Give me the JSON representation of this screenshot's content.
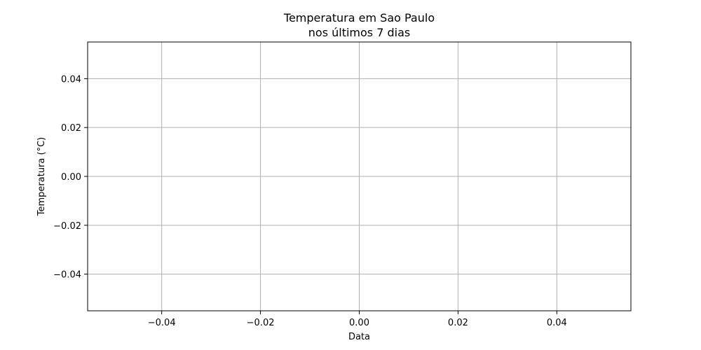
{
  "chart_data": {
    "type": "line",
    "title_lines": [
      "Temperatura em Sao Paulo",
      "nos últimos 7 dias"
    ],
    "xlabel": "Data",
    "ylabel": "Temperatura (°C)",
    "xlim": [
      -0.055,
      0.055
    ],
    "ylim": [
      -0.055,
      0.055
    ],
    "x_ticks": [
      -0.04,
      -0.02,
      0.0,
      0.02,
      0.04
    ],
    "x_tick_labels": [
      "−0.04",
      "−0.02",
      "0.00",
      "0.02",
      "0.04"
    ],
    "y_ticks": [
      -0.04,
      -0.02,
      0.0,
      0.02,
      0.04
    ],
    "y_tick_labels": [
      "−0.04",
      "−0.02",
      "0.00",
      "0.02",
      "0.04"
    ],
    "grid": true,
    "series": [
      {
        "x": [],
        "y": []
      }
    ],
    "colors": {
      "grid": "#b0b0b0",
      "axes": "#000000",
      "line": "#1f77b4"
    }
  }
}
